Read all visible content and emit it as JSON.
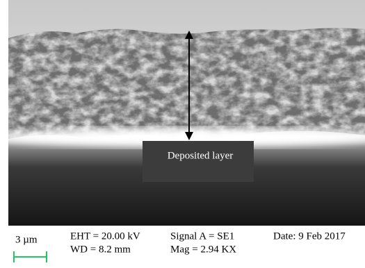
{
  "image": {
    "annotation": "Deposited layer"
  },
  "info_bar": {
    "scale": "3 µm",
    "eht": "EHT = 20.00 kV",
    "wd": "WD = 8.2 mm",
    "signal": "Signal A = SE1",
    "mag": "Mag = 2.94 KX",
    "date": "Date: 9 Feb 2017"
  }
}
